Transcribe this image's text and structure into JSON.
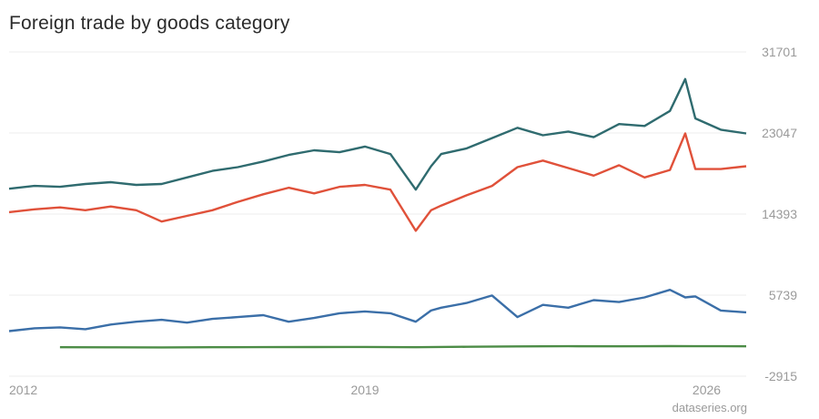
{
  "title": "Foreign trade by goods category",
  "source": "dataseries.org",
  "chart_data": {
    "type": "line",
    "title": "Foreign trade by goods category",
    "xlabel": "",
    "ylabel": "",
    "ylim": [
      -2915,
      31701
    ],
    "y_ticks": [
      "31701",
      "23047",
      "14393",
      "5739",
      "-2915"
    ],
    "x_ticks": [
      "2012",
      "2019",
      "2026"
    ],
    "x_tick_years": [
      2012,
      2019,
      2026
    ],
    "xlim": [
      2012.0,
      2026.5
    ],
    "grid": true,
    "legend": "none",
    "series": [
      {
        "color": "#2f6b6f",
        "x": [
          2012.0,
          2012.5,
          2013.0,
          2013.5,
          2014.0,
          2014.5,
          2015.0,
          2015.5,
          2016.0,
          2016.5,
          2017.0,
          2017.5,
          2018.0,
          2018.5,
          2019.0,
          2019.5,
          2020.0,
          2020.3,
          2020.5,
          2021.0,
          2021.5,
          2022.0,
          2022.5,
          2023.0,
          2023.5,
          2024.0,
          2024.5,
          2025.0,
          2025.3,
          2025.5,
          2026.0,
          2026.5
        ],
        "values": [
          17100,
          17400,
          17300,
          17600,
          17800,
          17500,
          17600,
          18300,
          19000,
          19400,
          20000,
          20700,
          21200,
          21000,
          21600,
          20800,
          17000,
          19500,
          20800,
          21400,
          22500,
          23600,
          22800,
          23200,
          22600,
          24000,
          23800,
          25400,
          28800,
          24600,
          23400,
          23000
        ]
      },
      {
        "color": "#e0513a",
        "x": [
          2012.0,
          2012.5,
          2013.0,
          2013.5,
          2014.0,
          2014.5,
          2015.0,
          2015.5,
          2016.0,
          2016.5,
          2017.0,
          2017.5,
          2018.0,
          2018.5,
          2019.0,
          2019.5,
          2020.0,
          2020.3,
          2020.5,
          2021.0,
          2021.5,
          2022.0,
          2022.5,
          2023.0,
          2023.5,
          2024.0,
          2024.5,
          2025.0,
          2025.3,
          2025.5,
          2026.0,
          2026.5
        ],
        "values": [
          14600,
          14900,
          15100,
          14800,
          15200,
          14800,
          13600,
          14200,
          14800,
          15700,
          16500,
          17200,
          16600,
          17300,
          17500,
          17000,
          12600,
          14800,
          15300,
          16400,
          17400,
          19400,
          20100,
          19300,
          18500,
          19600,
          18300,
          19100,
          23000,
          19200,
          19200,
          19500
        ]
      },
      {
        "color": "#3b6fa8",
        "x": [
          2012.0,
          2012.5,
          2013.0,
          2013.5,
          2014.0,
          2014.5,
          2015.0,
          2015.5,
          2016.0,
          2016.5,
          2017.0,
          2017.5,
          2018.0,
          2018.5,
          2019.0,
          2019.5,
          2020.0,
          2020.3,
          2020.5,
          2021.0,
          2021.5,
          2022.0,
          2022.5,
          2023.0,
          2023.5,
          2024.0,
          2024.5,
          2025.0,
          2025.3,
          2025.5,
          2026.0,
          2026.5
        ],
        "values": [
          1900,
          2200,
          2300,
          2100,
          2600,
          2900,
          3100,
          2800,
          3200,
          3400,
          3600,
          2900,
          3300,
          3800,
          4000,
          3800,
          2900,
          4100,
          4400,
          4900,
          5700,
          3400,
          4700,
          4400,
          5200,
          5000,
          5500,
          6300,
          5500,
          5600,
          4100,
          3900
        ]
      },
      {
        "color": "#4c8c46",
        "x": [
          2013.0,
          2014.0,
          2015.0,
          2016.0,
          2017.0,
          2018.0,
          2019.0,
          2020.0,
          2021.0,
          2022.0,
          2023.0,
          2024.0,
          2025.0,
          2026.0,
          2026.5
        ],
        "values": [
          180,
          170,
          160,
          180,
          190,
          200,
          210,
          180,
          230,
          260,
          280,
          270,
          290,
          280,
          270
        ]
      }
    ]
  }
}
